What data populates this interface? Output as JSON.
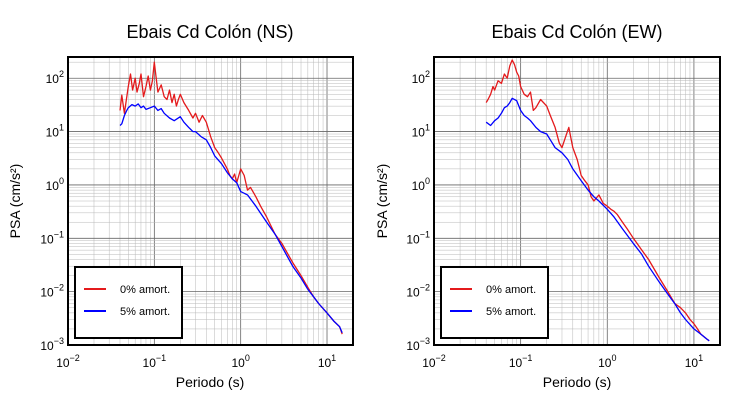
{
  "chart_data": [
    {
      "type": "line",
      "title": "Ebais Cd Colón (NS)",
      "xlabel": "Periodo (s)",
      "ylabel": "PSA (cm/s²)",
      "xscale": "log",
      "yscale": "log",
      "xlim": [
        0.01,
        20
      ],
      "ylim": [
        0.001,
        250
      ],
      "grid": true,
      "legend_position": "bottom-left",
      "x_ticks": [
        {
          "base": "10",
          "exp": "−2"
        },
        {
          "base": "10",
          "exp": "−1"
        },
        {
          "base": "10",
          "exp": "0"
        },
        {
          "base": "10",
          "exp": "1"
        }
      ],
      "y_ticks": [
        {
          "base": "10",
          "exp": "−3"
        },
        {
          "base": "10",
          "exp": "−2"
        },
        {
          "base": "10",
          "exp": "−1"
        },
        {
          "base": "10",
          "exp": "0"
        },
        {
          "base": "10",
          "exp": "1"
        },
        {
          "base": "10",
          "exp": "2"
        }
      ],
      "series": [
        {
          "name": "0% amort.",
          "color": "#e41a1c",
          "x": [
            0.04,
            0.042,
            0.045,
            0.048,
            0.05,
            0.053,
            0.056,
            0.06,
            0.063,
            0.067,
            0.07,
            0.075,
            0.08,
            0.085,
            0.09,
            0.095,
            0.1,
            0.105,
            0.11,
            0.12,
            0.13,
            0.14,
            0.15,
            0.16,
            0.17,
            0.18,
            0.19,
            0.2,
            0.22,
            0.25,
            0.28,
            0.3,
            0.33,
            0.36,
            0.4,
            0.45,
            0.5,
            0.55,
            0.6,
            0.65,
            0.7,
            0.75,
            0.8,
            0.85,
            0.9,
            0.95,
            1.0,
            1.1,
            1.2,
            1.3,
            1.5,
            1.7,
            2.0,
            2.5,
            3.0,
            4.0,
            5.0,
            6.0,
            7.0,
            8.0,
            10.0,
            12.0,
            14.0,
            15.0
          ],
          "y": [
            25,
            48,
            22,
            45,
            70,
            120,
            60,
            100,
            55,
            80,
            120,
            45,
            70,
            110,
            60,
            90,
            200,
            100,
            55,
            75,
            45,
            40,
            60,
            35,
            50,
            30,
            40,
            50,
            35,
            25,
            18,
            22,
            15,
            20,
            15,
            8,
            5,
            4,
            3.2,
            2.5,
            2,
            1.5,
            1.3,
            1.6,
            1.1,
            1.5,
            2,
            1.5,
            0.8,
            0.9,
            0.6,
            0.4,
            0.25,
            0.12,
            0.08,
            0.035,
            0.02,
            0.012,
            0.008,
            0.006,
            0.004,
            0.0028,
            0.0022,
            0.0016
          ]
        },
        {
          "name": "5% amort.",
          "color": "#0000ff",
          "x": [
            0.04,
            0.042,
            0.045,
            0.048,
            0.05,
            0.055,
            0.06,
            0.065,
            0.07,
            0.075,
            0.08,
            0.09,
            0.1,
            0.11,
            0.12,
            0.13,
            0.15,
            0.17,
            0.2,
            0.22,
            0.25,
            0.28,
            0.3,
            0.35,
            0.4,
            0.45,
            0.5,
            0.6,
            0.7,
            0.8,
            0.9,
            1.0,
            1.2,
            1.5,
            2.0,
            2.5,
            3.0,
            4.0,
            5.0,
            6.0,
            7.0,
            8.0,
            10.0,
            12.0,
            14.0,
            15.0
          ],
          "y": [
            13,
            14,
            20,
            25,
            28,
            32,
            30,
            33,
            28,
            30,
            26,
            28,
            30,
            25,
            27,
            22,
            18,
            16,
            19,
            15,
            12,
            10,
            10,
            8,
            7,
            5,
            3.5,
            2.5,
            1.7,
            1.3,
            1.1,
            0.75,
            0.65,
            0.4,
            0.2,
            0.12,
            0.07,
            0.03,
            0.018,
            0.011,
            0.008,
            0.006,
            0.004,
            0.0028,
            0.0022,
            0.0017
          ]
        }
      ]
    },
    {
      "type": "line",
      "title": "Ebais Cd Colón (EW)",
      "xlabel": "Periodo (s)",
      "ylabel": "PSA (cm/s²)",
      "xscale": "log",
      "yscale": "log",
      "xlim": [
        0.01,
        20
      ],
      "ylim": [
        0.001,
        250
      ],
      "grid": true,
      "legend_position": "bottom-left",
      "x_ticks": [
        {
          "base": "10",
          "exp": "−2"
        },
        {
          "base": "10",
          "exp": "−1"
        },
        {
          "base": "10",
          "exp": "0"
        },
        {
          "base": "10",
          "exp": "1"
        }
      ],
      "y_ticks": [
        {
          "base": "10",
          "exp": "−3"
        },
        {
          "base": "10",
          "exp": "−2"
        },
        {
          "base": "10",
          "exp": "−1"
        },
        {
          "base": "10",
          "exp": "0"
        },
        {
          "base": "10",
          "exp": "1"
        },
        {
          "base": "10",
          "exp": "2"
        }
      ],
      "series": [
        {
          "name": "0% amort.",
          "color": "#e41a1c",
          "x": [
            0.04,
            0.042,
            0.045,
            0.048,
            0.05,
            0.055,
            0.06,
            0.065,
            0.07,
            0.075,
            0.08,
            0.085,
            0.09,
            0.095,
            0.1,
            0.11,
            0.12,
            0.13,
            0.14,
            0.15,
            0.17,
            0.2,
            0.22,
            0.25,
            0.28,
            0.3,
            0.33,
            0.36,
            0.4,
            0.45,
            0.5,
            0.55,
            0.6,
            0.65,
            0.7,
            0.8,
            0.9,
            1.0,
            1.1,
            1.2,
            1.3,
            1.5,
            1.7,
            2.0,
            2.5,
            3.0,
            4.0,
            5.0,
            6.0,
            7.0,
            8.0,
            9.0,
            10.0,
            11.0,
            12.0,
            14.0,
            15.0
          ],
          "y": [
            35,
            40,
            50,
            70,
            60,
            90,
            80,
            120,
            100,
            170,
            220,
            180,
            130,
            110,
            70,
            50,
            45,
            55,
            25,
            28,
            40,
            30,
            20,
            12,
            6,
            5,
            8,
            12,
            5,
            3,
            1.5,
            1.2,
            1.0,
            0.6,
            0.5,
            0.65,
            0.45,
            0.4,
            0.35,
            0.32,
            0.28,
            0.2,
            0.15,
            0.1,
            0.06,
            0.04,
            0.018,
            0.01,
            0.006,
            0.005,
            0.004,
            0.003,
            0.0025,
            0.002,
            0.0016,
            0.0013,
            0.0012
          ]
        },
        {
          "name": "5% amort.",
          "color": "#0000ff",
          "x": [
            0.04,
            0.045,
            0.05,
            0.055,
            0.06,
            0.065,
            0.07,
            0.075,
            0.08,
            0.09,
            0.1,
            0.11,
            0.12,
            0.13,
            0.15,
            0.17,
            0.2,
            0.22,
            0.25,
            0.3,
            0.35,
            0.4,
            0.5,
            0.6,
            0.7,
            0.8,
            1.0,
            1.2,
            1.5,
            2.0,
            2.5,
            3.0,
            4.0,
            5.0,
            6.0,
            7.0,
            8.0,
            10.0,
            12.0,
            14.0,
            15.0
          ],
          "y": [
            15,
            13,
            16,
            18,
            22,
            28,
            30,
            35,
            42,
            38,
            25,
            20,
            18,
            16,
            12,
            10,
            9,
            7,
            5,
            4,
            3,
            2,
            1.2,
            0.8,
            0.6,
            0.5,
            0.35,
            0.25,
            0.15,
            0.08,
            0.05,
            0.03,
            0.015,
            0.009,
            0.006,
            0.004,
            0.003,
            0.002,
            0.0016,
            0.0013,
            0.0012
          ]
        }
      ]
    }
  ]
}
